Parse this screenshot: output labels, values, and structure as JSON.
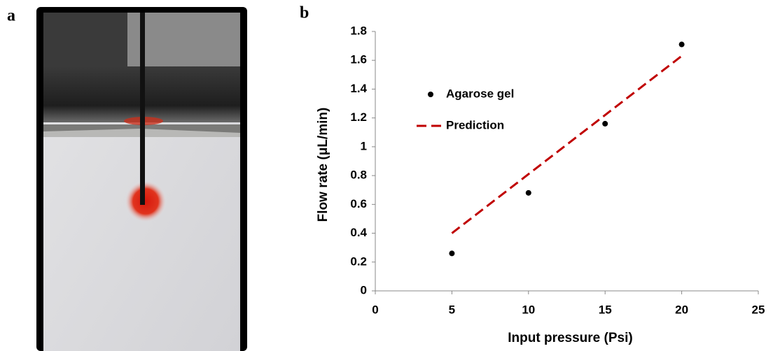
{
  "panel_labels": [
    "a",
    "b"
  ],
  "chart_data": {
    "type": "scatter",
    "x_label": "Input pressure (Psi)",
    "y_label": "Flow rate (μL/min)",
    "xlim": [
      0,
      25
    ],
    "xticks": [
      0,
      5,
      10,
      15,
      20,
      25
    ],
    "ylim": [
      0,
      1.8
    ],
    "yticks": [
      0,
      0.2,
      0.4,
      0.6,
      0.8,
      1,
      1.2,
      1.4,
      1.6,
      1.8
    ],
    "grid": false,
    "legend": "upper left",
    "series": [
      {
        "name": "Agarose gel",
        "type": "scatter",
        "color": "#000000",
        "x": [
          5,
          10,
          15,
          20
        ],
        "values": [
          0.26,
          0.68,
          1.16,
          1.71
        ]
      },
      {
        "name": "Prediction",
        "type": "line",
        "color": "#c00000",
        "x": [
          5,
          20
        ],
        "values": [
          0.4,
          1.63
        ]
      }
    ]
  }
}
